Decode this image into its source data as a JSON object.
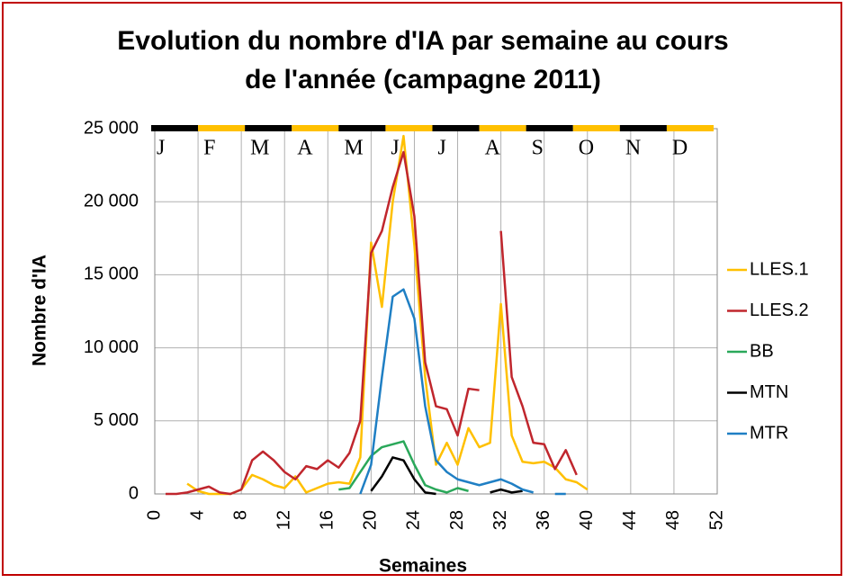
{
  "chart_data": {
    "type": "line",
    "title": [
      "Evolution du nombre d'IA par semaine au cours",
      "de l'année (campagne 2011)"
    ],
    "x_label": "Semaines",
    "y_label": "Nombre d'IA",
    "x": [
      1,
      2,
      3,
      4,
      5,
      6,
      7,
      8,
      9,
      10,
      11,
      12,
      13,
      14,
      15,
      16,
      17,
      18,
      19,
      20,
      21,
      22,
      23,
      24,
      25,
      26,
      27,
      28,
      29,
      30,
      31,
      32,
      33,
      34,
      35,
      36,
      37,
      38,
      39,
      40
    ],
    "series": [
      {
        "name": "LLES.1",
        "color": "#ffc000",
        "values": [
          null,
          null,
          700,
          200,
          0,
          0,
          0,
          300,
          1300,
          1000,
          600,
          400,
          1200,
          100,
          400,
          700,
          800,
          700,
          2500,
          17200,
          12800,
          20000,
          24500,
          17000,
          8000,
          2000,
          3500,
          2000,
          4500,
          3200,
          3500,
          13000,
          4000,
          2200,
          2100,
          2200,
          1800,
          1000,
          800,
          300
        ]
      },
      {
        "name": "LLES.2",
        "color": "#c0262d",
        "values": [
          0,
          0,
          100,
          300,
          500,
          100,
          0,
          300,
          2300,
          2900,
          2300,
          1500,
          1000,
          1900,
          1700,
          2300,
          1800,
          2800,
          5000,
          16500,
          18000,
          21000,
          23400,
          19000,
          9000,
          6000,
          5800,
          4000,
          7200,
          7100,
          null,
          18000,
          8000,
          6000,
          3500,
          3400,
          1700,
          3000,
          1300,
          null
        ]
      },
      {
        "name": "BB",
        "color": "#2aa85a",
        "values": [
          null,
          null,
          null,
          null,
          null,
          null,
          null,
          null,
          null,
          null,
          null,
          null,
          null,
          null,
          null,
          null,
          300,
          400,
          1500,
          2600,
          3200,
          3400,
          3600,
          2000,
          600,
          300,
          100,
          400,
          200,
          null,
          null,
          null,
          null,
          null,
          null,
          null,
          null,
          null,
          null,
          null
        ]
      },
      {
        "name": "MTN",
        "color": "#000000",
        "values": [
          null,
          null,
          null,
          null,
          null,
          null,
          null,
          null,
          null,
          null,
          null,
          null,
          null,
          null,
          null,
          null,
          null,
          null,
          null,
          200,
          1200,
          2500,
          2300,
          1000,
          100,
          0,
          null,
          null,
          null,
          null,
          100,
          300,
          100,
          200,
          null,
          null,
          null,
          null,
          null,
          null
        ]
      },
      {
        "name": "MTR",
        "color": "#1f7fc4",
        "values": [
          null,
          null,
          null,
          null,
          null,
          null,
          null,
          null,
          null,
          null,
          null,
          null,
          null,
          null,
          null,
          null,
          null,
          null,
          0,
          2000,
          8000,
          13500,
          14000,
          12000,
          6000,
          2300,
          1500,
          1000,
          800,
          600,
          800,
          1000,
          700,
          300,
          100,
          null,
          0,
          0,
          null,
          null
        ]
      }
    ],
    "xlim": [
      0,
      52
    ],
    "xticks": [
      0,
      4,
      8,
      12,
      16,
      20,
      24,
      28,
      32,
      36,
      40,
      44,
      48,
      52
    ],
    "ylim": [
      0,
      25000
    ],
    "yticks": [
      0,
      {
        "value": 5000,
        "label": "5 000"
      },
      {
        "value": 10000,
        "label": "10 000"
      },
      {
        "value": 15000,
        "label": "15 000"
      },
      {
        "value": 20000,
        "label": "20 000"
      },
      {
        "value": 25000,
        "label": "25 000"
      }
    ],
    "grid": true,
    "legend": "right",
    "months": [
      "J",
      "F",
      "M",
      "A",
      "M",
      "J",
      "J",
      "A",
      "S",
      "O",
      "N",
      "D"
    ],
    "month_colors": [
      "#000000",
      "#ffc000"
    ]
  }
}
